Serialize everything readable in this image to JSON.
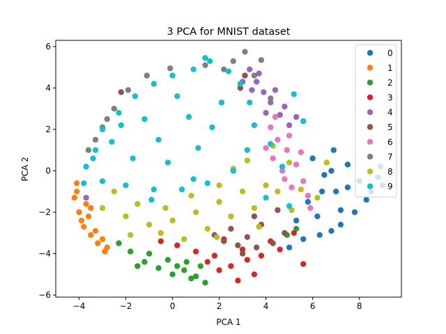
{
  "chart_data": {
    "type": "scatter",
    "title": "3 PCA for MNIST dataset",
    "xlabel": "PCA 1",
    "ylabel": "PCA 2",
    "xlim": [
      -5,
      9.8
    ],
    "ylim": [
      -6.1,
      6.3
    ],
    "xticks": [
      -4,
      -2,
      0,
      2,
      4,
      6,
      8
    ],
    "yticks": [
      -6,
      -4,
      -2,
      0,
      2,
      4,
      6
    ],
    "xtick_labels": [
      "−4",
      "−2",
      "0",
      "2",
      "4",
      "6",
      "8"
    ],
    "ytick_labels": [
      "−6",
      "−4",
      "−2",
      "0",
      "2",
      "4",
      "6"
    ],
    "grid": false,
    "legend_position": "top-right",
    "series": [
      {
        "name": "0",
        "color": "#1f77b4",
        "points": [
          [
            6.2,
            -2.2
          ],
          [
            7.0,
            -1.0
          ],
          [
            8.0,
            -0.5
          ],
          [
            8.8,
            -0.3
          ],
          [
            6.5,
            -0.2
          ],
          [
            7.5,
            0.3
          ],
          [
            6.9,
            1.0
          ],
          [
            8.3,
            -1.4
          ],
          [
            7.2,
            -2.6
          ],
          [
            6.3,
            -3.1
          ],
          [
            5.6,
            -3.3
          ],
          [
            5.0,
            -3.7
          ],
          [
            7.8,
            -2.0
          ],
          [
            8.9,
            0.2
          ],
          [
            6.0,
            0.6
          ],
          [
            7.2,
            -1.9
          ],
          [
            5.8,
            -1.5
          ],
          [
            6.8,
            -2.9
          ],
          [
            8.5,
            -1.0
          ],
          [
            7.5,
            -0.8
          ],
          [
            6.4,
            -1.0
          ],
          [
            5.3,
            -2.4
          ],
          [
            9.0,
            -0.7
          ],
          [
            6.8,
            0.0
          ]
        ]
      },
      {
        "name": "1",
        "color": "#ff7f0e",
        "points": [
          [
            -4.2,
            -1.3
          ],
          [
            -4.0,
            -2.0
          ],
          [
            -3.8,
            -2.7
          ],
          [
            -3.5,
            -3.1
          ],
          [
            -3.2,
            -3.5
          ],
          [
            -2.9,
            -3.9
          ],
          [
            -4.1,
            -1.0
          ],
          [
            -3.9,
            -2.4
          ],
          [
            -3.6,
            -2.2
          ],
          [
            -3.3,
            -2.9
          ],
          [
            -3.0,
            -3.3
          ],
          [
            -3.7,
            -1.6
          ],
          [
            -4.1,
            -0.6
          ],
          [
            -3.5,
            -1.8
          ],
          [
            -2.8,
            -3.7
          ]
        ]
      },
      {
        "name": "2",
        "color": "#2ca02c",
        "points": [
          [
            -1.8,
            -3.9
          ],
          [
            -1.2,
            -4.4
          ],
          [
            -0.6,
            -4.7
          ],
          [
            0.0,
            -5.0
          ],
          [
            0.5,
            -4.8
          ],
          [
            1.0,
            -5.1
          ],
          [
            1.4,
            -5.4
          ],
          [
            -0.2,
            -4.3
          ],
          [
            0.6,
            -4.4
          ],
          [
            1.2,
            -4.6
          ],
          [
            -2.3,
            -3.5
          ],
          [
            -1.0,
            -4.0
          ],
          [
            0.2,
            -4.6
          ],
          [
            0.8,
            -5.2
          ],
          [
            4.9,
            -3.1
          ],
          [
            5.3,
            -2.8
          ],
          [
            -1.5,
            -4.6
          ]
        ]
      },
      {
        "name": "3",
        "color": "#d62728",
        "points": [
          [
            0.2,
            -3.6
          ],
          [
            1.0,
            -3.9
          ],
          [
            1.8,
            -4.1
          ],
          [
            2.5,
            -4.6
          ],
          [
            3.2,
            -4.3
          ],
          [
            3.8,
            -4.1
          ],
          [
            2.8,
            -5.3
          ],
          [
            4.2,
            -3.4
          ],
          [
            3.0,
            -3.8
          ],
          [
            1.5,
            -4.4
          ],
          [
            2.2,
            -3.3
          ],
          [
            4.6,
            -3.8
          ],
          [
            5.6,
            -4.5
          ],
          [
            5.2,
            -3.0
          ],
          [
            3.5,
            -5.0
          ],
          [
            -0.5,
            -3.4
          ],
          [
            2.0,
            -4.8
          ]
        ]
      },
      {
        "name": "4",
        "color": "#9467bd",
        "points": [
          [
            3.3,
            4.9
          ],
          [
            3.6,
            4.3
          ],
          [
            3.9,
            3.8
          ],
          [
            4.2,
            3.3
          ],
          [
            4.6,
            2.7
          ],
          [
            5.0,
            2.2
          ],
          [
            3.7,
            4.7
          ],
          [
            4.4,
            3.9
          ],
          [
            4.8,
            3.1
          ],
          [
            5.3,
            2.6
          ],
          [
            3.4,
            3.9
          ],
          [
            4.0,
            2.8
          ],
          [
            -3.7,
            -1.3
          ],
          [
            3.0,
            4.3
          ]
        ]
      },
      {
        "name": "5",
        "color": "#8c564b",
        "points": [
          [
            2.5,
            -2.8
          ],
          [
            3.2,
            -3.2
          ],
          [
            3.8,
            -2.6
          ],
          [
            4.3,
            -3.5
          ],
          [
            2.8,
            -3.6
          ],
          [
            3.5,
            -2.2
          ],
          [
            4.5,
            -1.9
          ],
          [
            3.0,
            -4.0
          ],
          [
            2.2,
            -3.4
          ],
          [
            4.8,
            -3.0
          ],
          [
            3.6,
            -3.7
          ],
          [
            1.8,
            -3.1
          ],
          [
            3.1,
            4.6
          ],
          [
            2.9,
            4.0
          ],
          [
            -2.2,
            3.8
          ]
        ]
      },
      {
        "name": "6",
        "color": "#e377c2",
        "points": [
          [
            4.2,
            2.1
          ],
          [
            4.5,
            1.5
          ],
          [
            4.9,
            1.0
          ],
          [
            5.3,
            0.3
          ],
          [
            5.6,
            -0.5
          ],
          [
            5.8,
            -1.2
          ],
          [
            4.0,
            1.1
          ],
          [
            4.7,
            0.0
          ],
          [
            5.1,
            -0.8
          ],
          [
            4.4,
            2.6
          ],
          [
            5.5,
            0.9
          ],
          [
            5.0,
            1.7
          ],
          [
            4.3,
            0.6
          ],
          [
            5.9,
            -1.8
          ],
          [
            4.8,
            -0.4
          ]
        ]
      },
      {
        "name": "7",
        "color": "#7f7f7f",
        "points": [
          [
            3.1,
            5.75
          ],
          [
            3.8,
            5.35
          ],
          [
            2.6,
            5.3
          ],
          [
            1.4,
            5.1
          ],
          [
            -0.1,
            4.95
          ],
          [
            -1.1,
            4.6
          ],
          [
            -1.9,
            3.9
          ],
          [
            -2.5,
            3.0
          ],
          [
            -3.0,
            2.1
          ],
          [
            -3.6,
            1.0
          ],
          [
            4.2,
            3.5
          ],
          [
            3.5,
            4.6
          ],
          [
            2.2,
            4.9
          ],
          [
            -3.3,
            1.5
          ],
          [
            -2.8,
            2.5
          ]
        ]
      },
      {
        "name": "8",
        "color": "#bcbd22",
        "points": [
          [
            -3.0,
            -1.8
          ],
          [
            -2.0,
            -2.2
          ],
          [
            -1.0,
            -2.6
          ],
          [
            0.0,
            -2.4
          ],
          [
            1.0,
            -2.0
          ],
          [
            2.0,
            -1.5
          ],
          [
            3.0,
            -1.0
          ],
          [
            4.0,
            -0.7
          ],
          [
            5.0,
            0.4
          ],
          [
            6.2,
            -1.3
          ],
          [
            6.6,
            0.4
          ],
          [
            -2.5,
            -1.0
          ],
          [
            -1.5,
            -1.6
          ],
          [
            -0.5,
            -3.0
          ],
          [
            0.5,
            -3.3
          ],
          [
            1.5,
            -2.8
          ],
          [
            2.5,
            -2.2
          ],
          [
            3.5,
            -1.8
          ],
          [
            4.5,
            -1.0
          ],
          [
            5.5,
            -0.9
          ],
          [
            3.2,
            0.5
          ],
          [
            2.0,
            -0.7
          ],
          [
            0.8,
            -1.2
          ],
          [
            -0.3,
            -1.8
          ],
          [
            4.3,
            1.2
          ],
          [
            3.7,
            -2.7
          ],
          [
            5.1,
            -1.9
          ],
          [
            1.9,
            -3.2
          ],
          [
            -1.8,
            -3.1
          ],
          [
            2.6,
            0.1
          ]
        ]
      },
      {
        "name": "9",
        "color": "#17becf",
        "points": [
          [
            -3.7,
            0.2
          ],
          [
            -3.3,
            1.0
          ],
          [
            -3.0,
            2.0
          ],
          [
            -2.3,
            2.8
          ],
          [
            -1.6,
            3.6
          ],
          [
            -0.8,
            4.2
          ],
          [
            0.0,
            4.6
          ],
          [
            0.9,
            4.9
          ],
          [
            1.6,
            5.3
          ],
          [
            2.4,
            4.8
          ],
          [
            2.9,
            4.2
          ],
          [
            3.3,
            3.3
          ],
          [
            3.5,
            2.2
          ],
          [
            3.2,
            1.0
          ],
          [
            2.6,
            0.0
          ],
          [
            1.5,
            -0.6
          ],
          [
            0.4,
            -0.9
          ],
          [
            -0.8,
            -0.9
          ],
          [
            -2.0,
            -0.7
          ],
          [
            -3.0,
            -0.5
          ],
          [
            -3.8,
            -0.6
          ],
          [
            -2.6,
            1.4
          ],
          [
            -1.7,
            0.6
          ],
          [
            -0.6,
            1.5
          ],
          [
            0.7,
            2.6
          ],
          [
            1.7,
            2.1
          ],
          [
            2.1,
            3.3
          ],
          [
            -1.2,
            2.5
          ],
          [
            0.2,
            3.6
          ],
          [
            -2.2,
            2.2
          ],
          [
            1.1,
            1.1
          ],
          [
            -0.2,
            0.4
          ],
          [
            0.9,
            -0.4
          ],
          [
            4.2,
            1.3
          ],
          [
            4.7,
            0.2
          ],
          [
            5.2,
            3.7
          ],
          [
            5.6,
            2.4
          ],
          [
            4.0,
            -1.3
          ],
          [
            5.0,
            -1.7
          ],
          [
            -3.4,
            0.6
          ],
          [
            -0.9,
            -1.4
          ],
          [
            1.4,
            5.45
          ]
        ]
      }
    ]
  }
}
